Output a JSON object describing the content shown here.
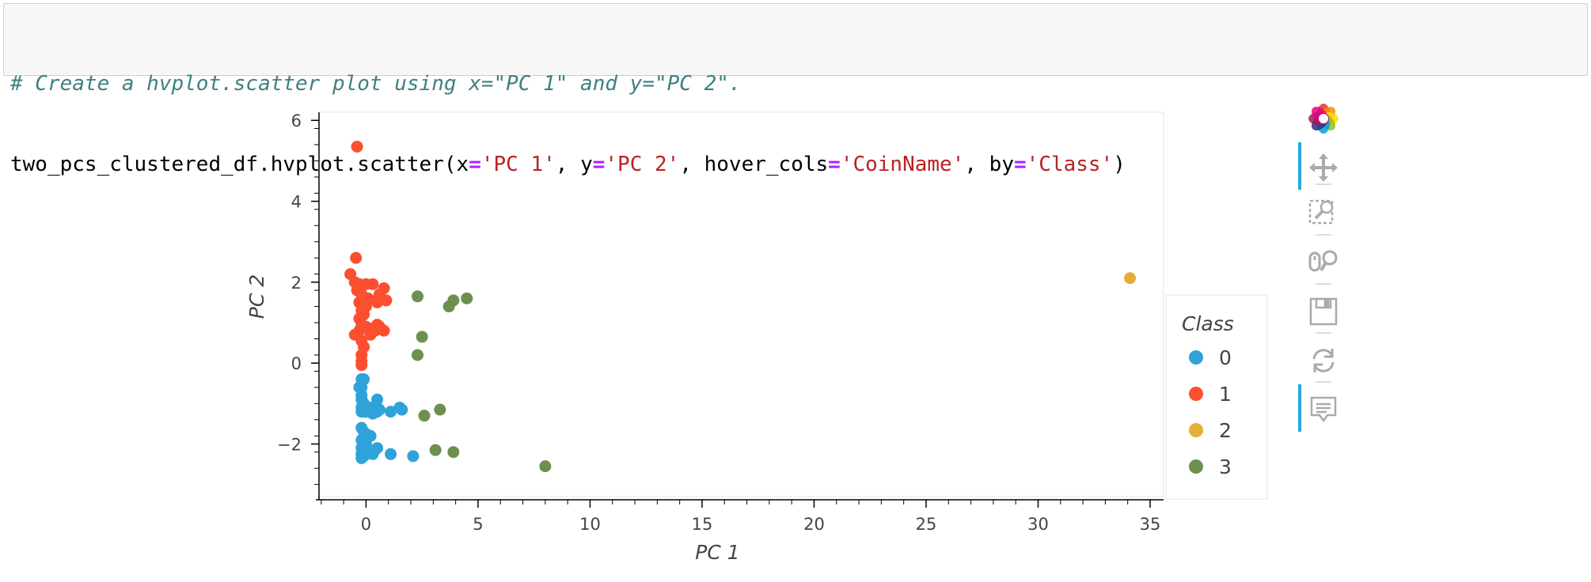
{
  "code": {
    "comment": "# Create a hvplot.scatter plot using x=\"PC 1\" and y=\"PC 2\".",
    "line2": [
      {
        "t": "two_pcs_clustered_df.hvplot.scatter(x",
        "k": "plain"
      },
      {
        "t": "=",
        "k": "op"
      },
      {
        "t": "'PC 1'",
        "k": "str"
      },
      {
        "t": ", y",
        "k": "plain"
      },
      {
        "t": "=",
        "k": "op"
      },
      {
        "t": "'PC 2'",
        "k": "str"
      },
      {
        "t": ", hover_cols",
        "k": "plain"
      },
      {
        "t": "=",
        "k": "op"
      },
      {
        "t": "'CoinName'",
        "k": "str"
      },
      {
        "t": ", by",
        "k": "plain"
      },
      {
        "t": "=",
        "k": "op"
      },
      {
        "t": "'Class'",
        "k": "str"
      },
      {
        "t": ")",
        "k": "plain"
      }
    ]
  },
  "toolbar": {
    "tools": [
      {
        "name": "bokeh-logo-icon",
        "interactable": true
      },
      {
        "name": "pan-icon",
        "interactable": true,
        "active": true
      },
      {
        "name": "box-zoom-icon",
        "interactable": true
      },
      {
        "name": "wheel-zoom-icon",
        "interactable": true
      },
      {
        "name": "save-icon",
        "interactable": true
      },
      {
        "name": "reset-icon",
        "interactable": true
      },
      {
        "name": "hover-icon",
        "interactable": true,
        "active": true
      }
    ]
  },
  "chart_data": {
    "type": "scatter",
    "title": "",
    "xlabel": "PC 1",
    "ylabel": "PC 2",
    "xlim": [
      -2.1,
      35.6
    ],
    "ylim": [
      -3.3,
      6.2
    ],
    "xticks": [
      0,
      5,
      10,
      15,
      20,
      25,
      30,
      35
    ],
    "yticks": [
      -2,
      0,
      2,
      4,
      6
    ],
    "grid": false,
    "legend": {
      "title": "Class",
      "placement": "right"
    },
    "series": [
      {
        "name": "0",
        "color": "#30a2da",
        "points": [
          [
            -0.2,
            -0.4
          ],
          [
            -0.1,
            -0.4
          ],
          [
            -0.2,
            -0.6
          ],
          [
            -0.3,
            -0.6
          ],
          [
            -0.2,
            -0.8
          ],
          [
            -0.2,
            -0.9
          ],
          [
            -0.1,
            -1.0
          ],
          [
            -0.2,
            -1.1
          ],
          [
            -0.2,
            -1.2
          ],
          [
            -0.1,
            -1.2
          ],
          [
            0.0,
            -1.2
          ],
          [
            0.2,
            -1.1
          ],
          [
            0.3,
            -1.25
          ],
          [
            0.5,
            -1.2
          ],
          [
            0.6,
            -1.15
          ],
          [
            0.5,
            -0.9
          ],
          [
            1.1,
            -1.2
          ],
          [
            1.5,
            -1.1
          ],
          [
            1.6,
            -1.15
          ],
          [
            -0.2,
            -1.6
          ],
          [
            -0.1,
            -1.7
          ],
          [
            0.0,
            -1.75
          ],
          [
            0.2,
            -1.8
          ],
          [
            -0.2,
            -1.9
          ],
          [
            -0.1,
            -2.0
          ],
          [
            0.0,
            -2.0
          ],
          [
            -0.2,
            -2.1
          ],
          [
            -0.1,
            -2.15
          ],
          [
            0.1,
            -2.2
          ],
          [
            0.2,
            -2.2
          ],
          [
            0.4,
            -2.15
          ],
          [
            0.5,
            -2.1
          ],
          [
            0.3,
            -2.25
          ],
          [
            -0.2,
            -2.25
          ],
          [
            -0.1,
            -2.3
          ],
          [
            -0.2,
            -2.35
          ],
          [
            1.1,
            -2.25
          ],
          [
            2.1,
            -2.3
          ]
        ]
      },
      {
        "name": "1",
        "color": "#fc4f30",
        "points": [
          [
            -0.4,
            5.35
          ],
          [
            -0.45,
            2.6
          ],
          [
            -0.7,
            2.2
          ],
          [
            -0.5,
            2.0
          ],
          [
            -0.3,
            1.95
          ],
          [
            0.0,
            1.95
          ],
          [
            0.3,
            1.95
          ],
          [
            0.8,
            1.85
          ],
          [
            0.6,
            1.7
          ],
          [
            0.9,
            1.55
          ],
          [
            0.5,
            1.5
          ],
          [
            0.1,
            1.6
          ],
          [
            -0.4,
            1.8
          ],
          [
            -0.2,
            1.7
          ],
          [
            -0.3,
            1.5
          ],
          [
            -0.2,
            1.3
          ],
          [
            -0.3,
            1.1
          ],
          [
            -0.2,
            0.95
          ],
          [
            -0.3,
            0.8
          ],
          [
            -0.5,
            0.7
          ],
          [
            -0.2,
            0.55
          ],
          [
            -0.1,
            0.4
          ],
          [
            -0.2,
            0.2
          ],
          [
            -0.2,
            0.05
          ],
          [
            -0.2,
            -0.05
          ],
          [
            0.0,
            0.9
          ],
          [
            0.2,
            0.85
          ],
          [
            0.4,
            0.8
          ],
          [
            0.6,
            0.9
          ],
          [
            0.8,
            0.8
          ],
          [
            0.5,
            0.95
          ],
          [
            0.2,
            0.7
          ],
          [
            -0.1,
            1.2
          ],
          [
            0.0,
            1.4
          ]
        ]
      },
      {
        "name": "2",
        "color": "#e5ae38",
        "points": [
          [
            34.1,
            2.1
          ]
        ]
      },
      {
        "name": "3",
        "color": "#6d904f",
        "points": [
          [
            2.3,
            1.65
          ],
          [
            3.7,
            1.4
          ],
          [
            3.9,
            1.55
          ],
          [
            4.5,
            1.6
          ],
          [
            2.5,
            0.65
          ],
          [
            2.3,
            0.2
          ],
          [
            3.3,
            -1.15
          ],
          [
            2.6,
            -1.3
          ],
          [
            3.1,
            -2.15
          ],
          [
            3.9,
            -2.2
          ],
          [
            8.0,
            -2.55
          ]
        ]
      }
    ]
  }
}
